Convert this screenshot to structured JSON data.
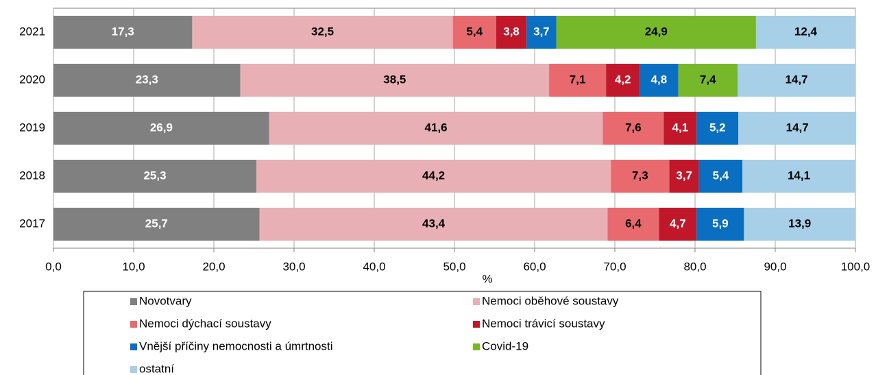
{
  "chart_data": {
    "type": "stacked_bar_horizontal",
    "x_label": "%",
    "categories": [
      "2021",
      "2020",
      "2019",
      "2018",
      "2017"
    ],
    "xlim": [
      0,
      100
    ],
    "xticks": [
      {
        "value": 0,
        "label": "0,0"
      },
      {
        "value": 10,
        "label": "10,0"
      },
      {
        "value": 20,
        "label": "20,0"
      },
      {
        "value": 30,
        "label": "30,0"
      },
      {
        "value": 40,
        "label": "40,0"
      },
      {
        "value": 50,
        "label": "50,0"
      },
      {
        "value": 60,
        "label": "60,0"
      },
      {
        "value": 70,
        "label": "70,0"
      },
      {
        "value": 80,
        "label": "80,0"
      },
      {
        "value": 90,
        "label": "90,0"
      },
      {
        "value": 100,
        "label": "100,0"
      }
    ],
    "grid": true,
    "legend": "bottom",
    "series": [
      {
        "name": "Novotvary",
        "color": "#808080",
        "label_color": "#ffffff",
        "values": [
          17.3,
          23.3,
          26.9,
          25.3,
          25.7
        ],
        "value_labels": [
          "17,3",
          "23,3",
          "26,9",
          "25,3",
          "25,7"
        ]
      },
      {
        "name": "Nemoci oběhové soustavy",
        "color": "#e8b0b5",
        "label_color": "#000000",
        "values": [
          32.5,
          38.5,
          41.6,
          44.2,
          43.4
        ],
        "value_labels": [
          "32,5",
          "38,5",
          "41,6",
          "44,2",
          "43,4"
        ]
      },
      {
        "name": "Nemoci dýchací soustavy",
        "color": "#e8696e",
        "label_color": "#000000",
        "values": [
          5.4,
          7.1,
          7.6,
          7.3,
          6.4
        ],
        "value_labels": [
          "5,4",
          "7,1",
          "7,6",
          "7,3",
          "6,4"
        ]
      },
      {
        "name": "Nemoci trávicí soustavy",
        "color": "#c0182a",
        "label_color": "#ffffff",
        "values": [
          3.8,
          4.2,
          4.1,
          3.7,
          4.7
        ],
        "value_labels": [
          "3,8",
          "4,2",
          "4,1",
          "3,7",
          "4,7"
        ]
      },
      {
        "name": "Vnější příčiny nemocnosti a úmrtnosti",
        "color": "#0a6fc0",
        "label_color": "#ffffff",
        "values": [
          3.7,
          4.8,
          5.2,
          5.4,
          5.9
        ],
        "value_labels": [
          "3,7",
          "4,8",
          "5,2",
          "5,4",
          "5,9"
        ]
      },
      {
        "name": "Covid-19",
        "color": "#77b82a",
        "label_color": "#000000",
        "values": [
          24.9,
          7.4,
          null,
          null,
          null
        ],
        "value_labels": [
          "24,9",
          "7,4",
          null,
          null,
          null
        ]
      },
      {
        "name": "ostatní",
        "color": "#a8cfe8",
        "label_color": "#000000",
        "values": [
          12.4,
          14.7,
          14.7,
          14.1,
          13.9
        ],
        "value_labels": [
          "12,4",
          "14,7",
          "14,7",
          "14,1",
          "13,9"
        ]
      }
    ]
  }
}
